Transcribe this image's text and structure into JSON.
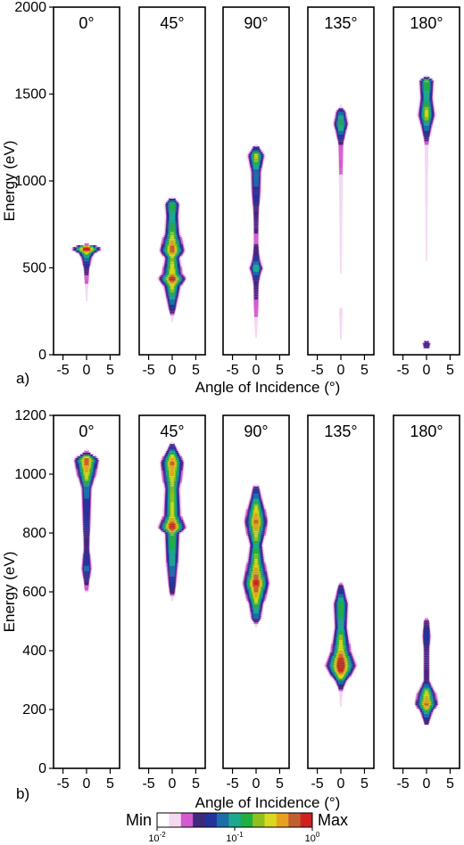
{
  "chart_data": [
    {
      "type": "heatmap",
      "panel_label": "a)",
      "ylabel": "Energy (eV)",
      "xlabel": "Angle of Incidence  (°)",
      "ylim": [
        0,
        2000
      ],
      "yticks": [
        0,
        500,
        1000,
        1500,
        2000
      ],
      "xlim": [
        -7,
        7
      ],
      "xticks": [
        -5,
        0,
        5
      ],
      "subplots": [
        {
          "title": "0°",
          "profile": [
            [
              100,
              0.01
            ],
            [
              150,
              0.02
            ],
            [
              250,
              0.05
            ],
            [
              350,
              0.12
            ],
            [
              420,
              0.22
            ],
            [
              500,
              0.3
            ],
            [
              560,
              0.42
            ],
            [
              590,
              0.55
            ],
            [
              610,
              0.95
            ],
            [
              630,
              0.5
            ],
            [
              640,
              0
            ]
          ]
        },
        {
          "title": "45°",
          "profile": [
            [
              150,
              0.02
            ],
            [
              200,
              0.1
            ],
            [
              250,
              0.3
            ],
            [
              330,
              0.45
            ],
            [
              400,
              0.55
            ],
            [
              440,
              0.85
            ],
            [
              470,
              0.6
            ],
            [
              560,
              0.5
            ],
            [
              600,
              0.75
            ],
            [
              700,
              0.5
            ],
            [
              800,
              0.45
            ],
            [
              870,
              0.5
            ],
            [
              900,
              0.3
            ],
            [
              910,
              0
            ]
          ]
        },
        {
          "title": "90°",
          "profile": [
            [
              80,
              0.05
            ],
            [
              120,
              0.12
            ],
            [
              200,
              0.2
            ],
            [
              280,
              0.25
            ],
            [
              400,
              0.28
            ],
            [
              450,
              0.35
            ],
            [
              500,
              0.48
            ],
            [
              550,
              0.35
            ],
            [
              650,
              0.25
            ],
            [
              800,
              0.28
            ],
            [
              950,
              0.38
            ],
            [
              1050,
              0.4
            ],
            [
              1150,
              0.55
            ],
            [
              1200,
              0.3
            ],
            [
              1215,
              0
            ]
          ]
        },
        {
          "title": "135°",
          "profile": [
            [
              60,
              0.05
            ],
            [
              100,
              0.1
            ],
            [
              200,
              0.15
            ],
            [
              260,
              0.2
            ],
            [
              280,
              0.03
            ],
            [
              320,
              0.02
            ],
            [
              400,
              0.06
            ],
            [
              550,
              0.12
            ],
            [
              800,
              0.16
            ],
            [
              1000,
              0.2
            ],
            [
              1200,
              0.25
            ],
            [
              1330,
              0.5
            ],
            [
              1400,
              0.4
            ],
            [
              1450,
              0
            ]
          ]
        },
        {
          "title": "180°",
          "profile": [
            [
              40,
              0.3
            ],
            [
              70,
              0.35
            ],
            [
              90,
              0.05
            ],
            [
              200,
              0.04
            ],
            [
              400,
              0.06
            ],
            [
              600,
              0.1
            ],
            [
              800,
              0.12
            ],
            [
              1000,
              0.15
            ],
            [
              1200,
              0.2
            ],
            [
              1380,
              0.55
            ],
            [
              1480,
              0.45
            ],
            [
              1580,
              0.5
            ],
            [
              1620,
              0
            ]
          ]
        }
      ]
    },
    {
      "type": "heatmap",
      "panel_label": "b)",
      "ylabel": "Energy (eV)",
      "xlabel": "Angle of Incidence  (°)",
      "ylim": [
        0,
        1200
      ],
      "yticks": [
        0,
        200,
        400,
        600,
        800,
        1000,
        1200
      ],
      "xlim": [
        -7,
        7
      ],
      "xticks": [
        -5,
        0,
        5
      ],
      "subplots": [
        {
          "title": "0°",
          "profile": [
            [
              600,
              0.2
            ],
            [
              680,
              0.4
            ],
            [
              750,
              0.3
            ],
            [
              850,
              0.35
            ],
            [
              950,
              0.4
            ],
            [
              1050,
              0.75
            ],
            [
              1080,
              0.2
            ],
            [
              1090,
              0
            ]
          ]
        },
        {
          "title": "45°",
          "profile": [
            [
              560,
              0.02
            ],
            [
              600,
              0.3
            ],
            [
              700,
              0.45
            ],
            [
              800,
              0.5
            ],
            [
              820,
              0.85
            ],
            [
              860,
              0.55
            ],
            [
              950,
              0.5
            ],
            [
              1040,
              0.7
            ],
            [
              1100,
              0.3
            ],
            [
              1115,
              0
            ]
          ]
        },
        {
          "title": "90°",
          "profile": [
            [
              360,
              0.02
            ],
            [
              480,
              0.08
            ],
            [
              510,
              0.4
            ],
            [
              560,
              0.5
            ],
            [
              630,
              0.8
            ],
            [
              700,
              0.55
            ],
            [
              760,
              0.45
            ],
            [
              840,
              0.7
            ],
            [
              900,
              0.5
            ],
            [
              960,
              0.3
            ],
            [
              970,
              0
            ]
          ]
        },
        {
          "title": "135°",
          "profile": [
            [
              80,
              0.02
            ],
            [
              200,
              0.06
            ],
            [
              260,
              0.2
            ],
            [
              300,
              0.45
            ],
            [
              350,
              0.95
            ],
            [
              400,
              0.6
            ],
            [
              480,
              0.45
            ],
            [
              560,
              0.5
            ],
            [
              620,
              0.3
            ],
            [
              640,
              0.05
            ],
            [
              690,
              0
            ]
          ]
        },
        {
          "title": "180°",
          "profile": [
            [
              150,
              0.25
            ],
            [
              200,
              0.5
            ],
            [
              220,
              0.7
            ],
            [
              260,
              0.55
            ],
            [
              300,
              0.3
            ],
            [
              400,
              0.3
            ],
            [
              450,
              0.35
            ],
            [
              500,
              0.3
            ],
            [
              520,
              0.05
            ],
            [
              560,
              0.05
            ],
            [
              570,
              0
            ]
          ]
        }
      ]
    }
  ],
  "colorbar": {
    "min_label": "Min",
    "max_label": "Max",
    "ticks": [
      {
        "base": "10",
        "exp": "-2",
        "pos": 0
      },
      {
        "base": "10",
        "exp": "-1",
        "pos": 0.5
      },
      {
        "base": "10",
        "exp": "0",
        "pos": 1
      }
    ],
    "colors": [
      "#ffffff",
      "#f4d8f2",
      "#d45ad0",
      "#3d2a7a",
      "#24339a",
      "#1a6fa8",
      "#1ea890",
      "#20b040",
      "#8fc020",
      "#d8d820",
      "#e8a020",
      "#c06030",
      "#d02020"
    ]
  }
}
